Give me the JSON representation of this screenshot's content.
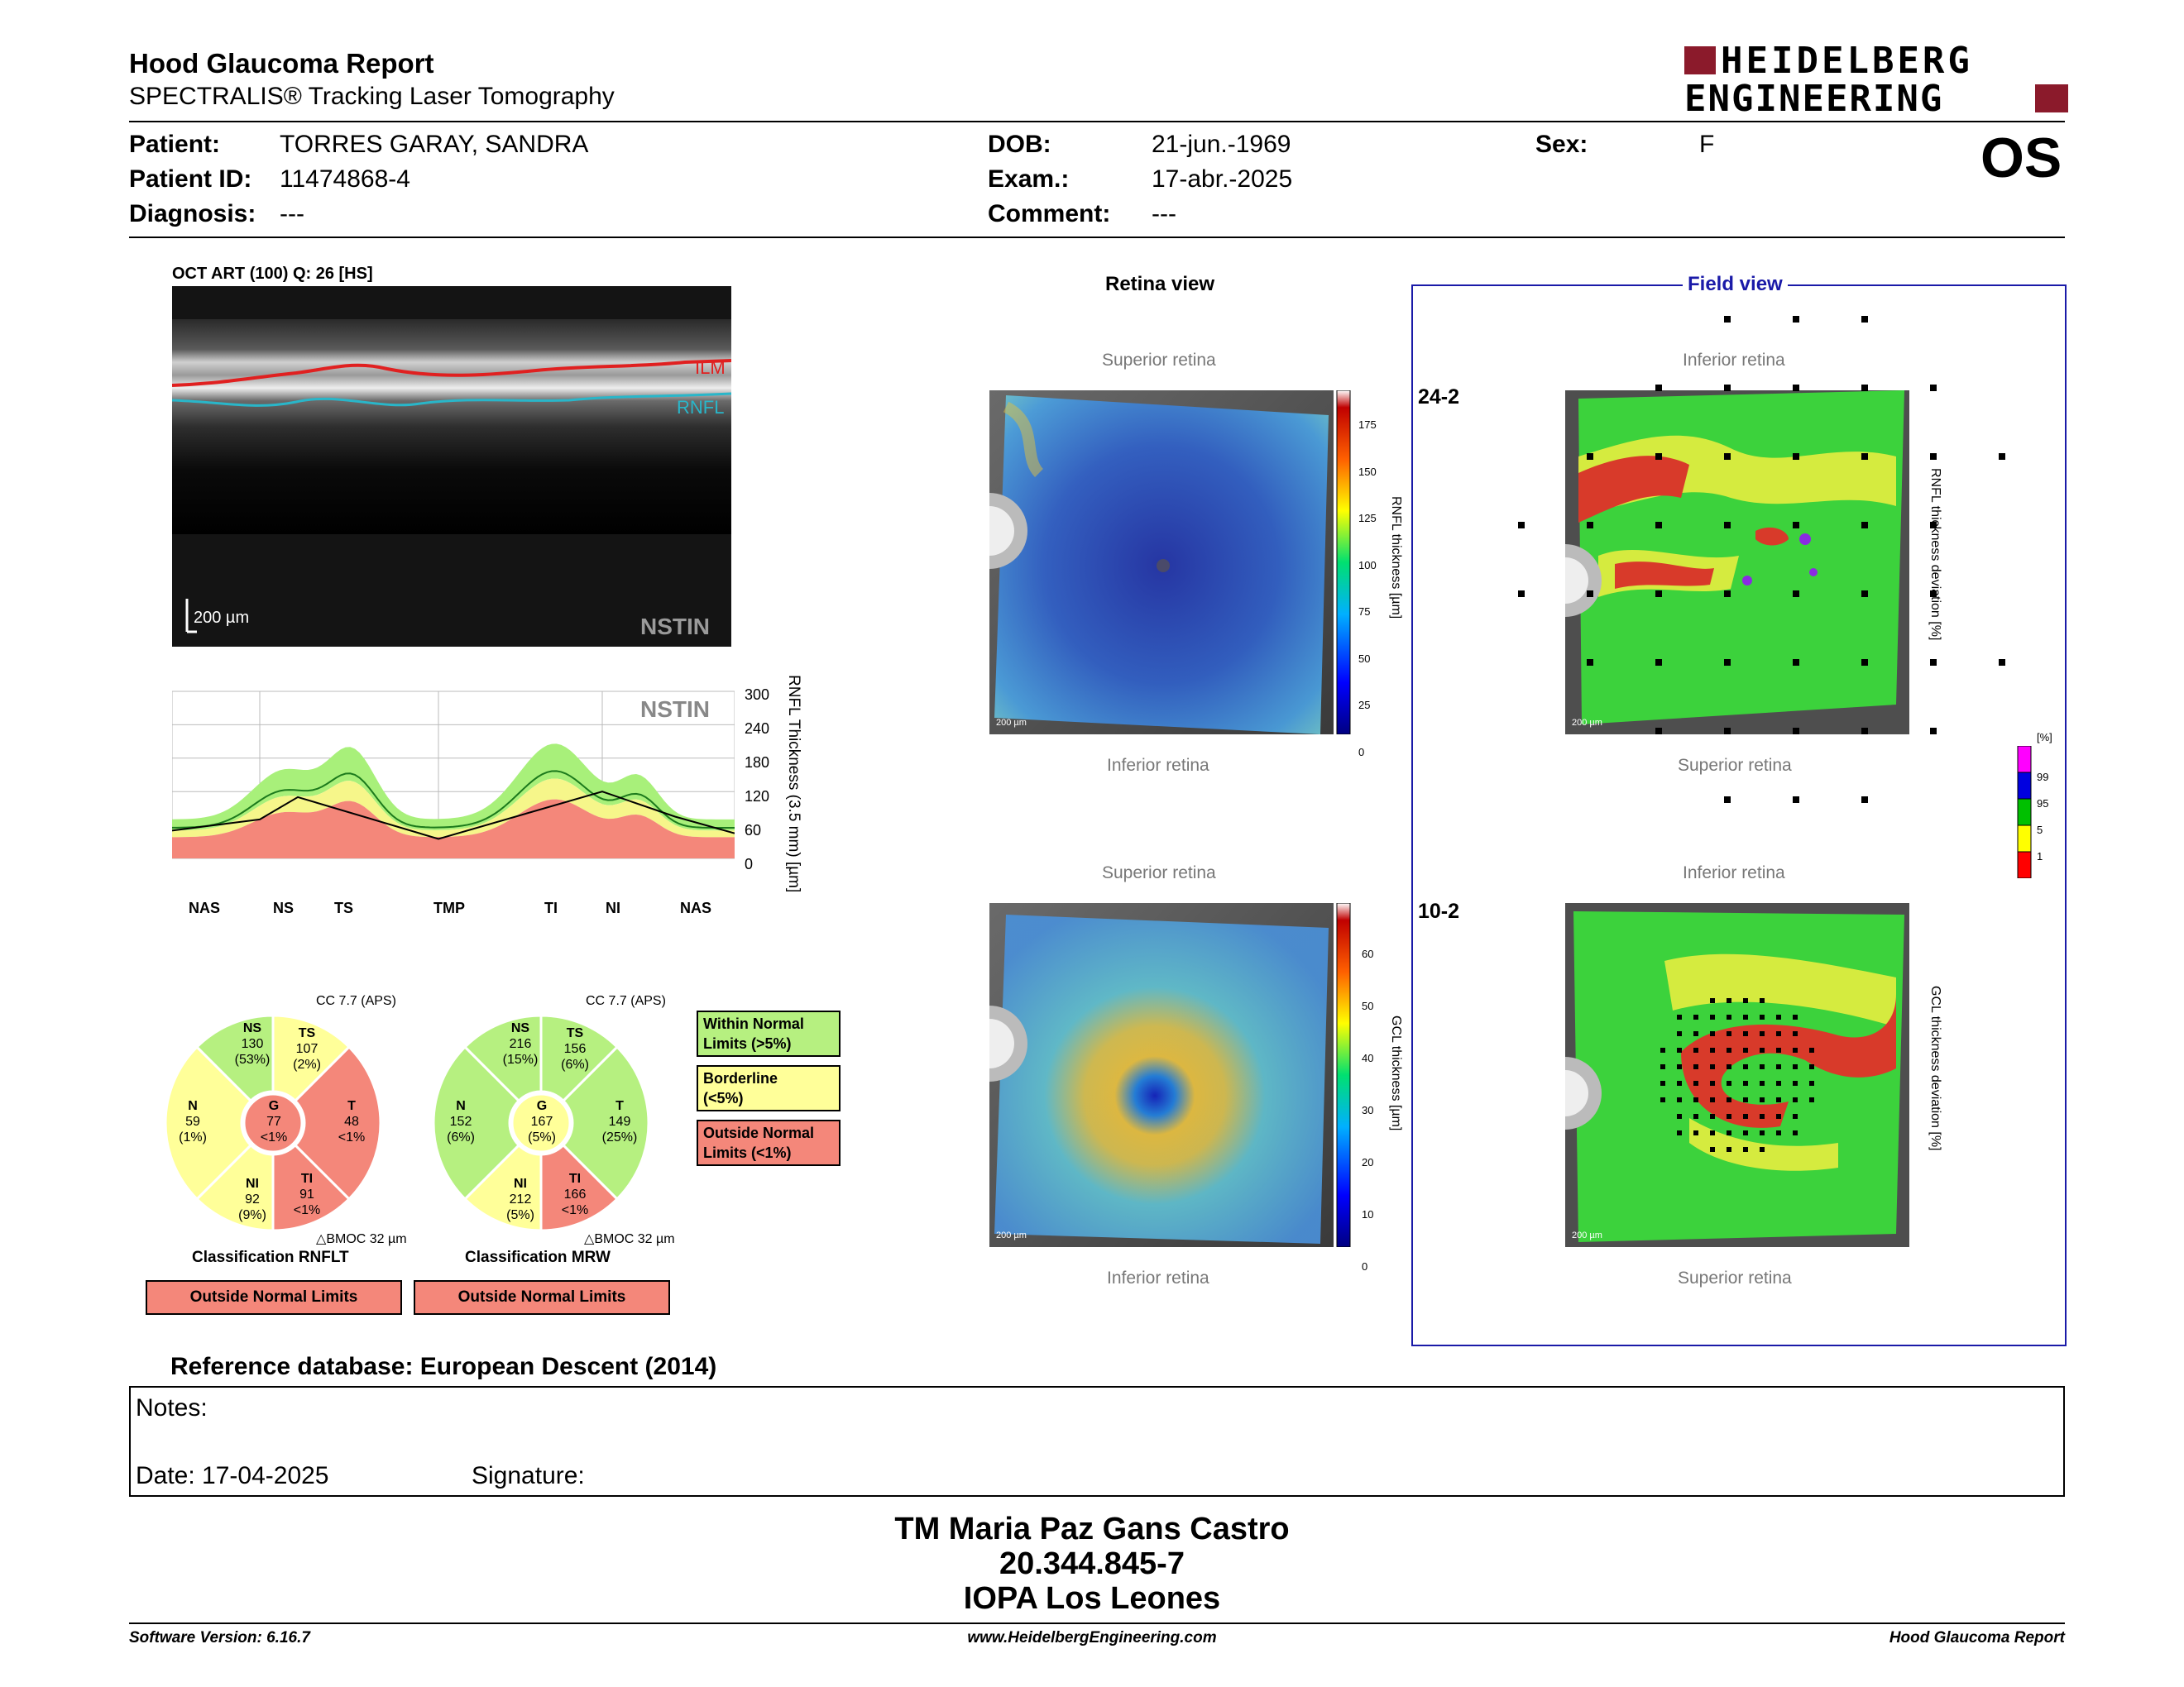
{
  "header": {
    "title": "Hood Glaucoma Report",
    "subtitle": "SPECTRALIS® Tracking Laser Tomography",
    "logo_line1": "HEIDELBERG",
    "logo_line2": "ENGINEERING"
  },
  "patient": {
    "patient_label": "Patient:",
    "patient_value": "TORRES GARAY, SANDRA",
    "id_label": "Patient ID:",
    "id_value": "11474868-4",
    "diag_label": "Diagnosis:",
    "diag_value": "---",
    "dob_label": "DOB:",
    "dob_value": "21-jun.-1969",
    "exam_label": "Exam.:",
    "exam_value": "17-abr.-2025",
    "comment_label": "Comment:",
    "comment_value": "---",
    "sex_label": "Sex:",
    "sex_value": "F",
    "eye": "OS"
  },
  "oct": {
    "title": "OCT ART (100) Q: 26 [HS]",
    "ilm": "ILM",
    "rnfl": "RNFL",
    "scale": "200 µm",
    "mode": "NSTIN"
  },
  "profile": {
    "mode": "NSTIN",
    "ylabel": "RNFL Thickness (3.5 mm) [µm]",
    "yticks": [
      "300",
      "240",
      "180",
      "120",
      "60",
      "0"
    ],
    "xlabels": [
      "NAS",
      "NS",
      "TS",
      "TMP",
      "TI",
      "NI",
      "NAS"
    ]
  },
  "chart_data": {
    "type": "line",
    "title": "",
    "ylabel": "RNFL Thickness (3.5 mm) [µm]",
    "ylim": [
      0,
      300
    ],
    "categories": [
      "NAS",
      "NS",
      "TS",
      "TMP",
      "TI",
      "NI",
      "NAS"
    ],
    "series": [
      {
        "values": [
          50,
          70,
          110,
          35,
          120,
          75,
          45
        ]
      },
      {
        "values": [
          80,
          110,
          170,
          60,
          180,
          115,
          70
        ]
      }
    ]
  },
  "rnflt": {
    "cc": "CC 7.7 (APS)",
    "NS": [
      "NS",
      "130",
      "(53%)"
    ],
    "TS": [
      "TS",
      "107",
      "(2%)"
    ],
    "N": [
      "N",
      "59",
      "(1%)"
    ],
    "G": [
      "G",
      "77",
      "<1%"
    ],
    "T": [
      "T",
      "48",
      "<1%"
    ],
    "NI": [
      "NI",
      "92",
      "(9%)"
    ],
    "TI": [
      "TI",
      "91",
      "<1%"
    ],
    "bmo": "BMOC 32 µm",
    "classification": "Classification RNFLT",
    "result": "Outside Normal Limits"
  },
  "mrw": {
    "cc": "CC 7.7 (APS)",
    "NS": [
      "NS",
      "216",
      "(15%)"
    ],
    "TS": [
      "TS",
      "156",
      "(6%)"
    ],
    "N": [
      "N",
      "152",
      "(6%)"
    ],
    "G": [
      "G",
      "167",
      "(5%)"
    ],
    "T": [
      "T",
      "149",
      "(25%)"
    ],
    "NI": [
      "NI",
      "212",
      "(5%)"
    ],
    "TI": [
      "TI",
      "166",
      "<1%"
    ],
    "bmo": "BMOC 32 µm",
    "classification": "Classification MRW",
    "result": "Outside Normal Limits"
  },
  "legend": {
    "within": "Within Normal Limits (>5%)",
    "within1": "Within Normal",
    "within2": "Limits (>5%)",
    "border1": "Borderline",
    "border2": "(<5%)",
    "outside1": "Outside Normal",
    "outside2": "Limits (<1%)"
  },
  "colors": {
    "green": "#b6f080",
    "yellow": "#ffff99",
    "red": "#f4877a"
  },
  "retina": {
    "title": "Retina view",
    "sup1": "Superior retina",
    "inf1": "Inferior retina",
    "sup2": "Superior retina",
    "inf2": "Inferior retina",
    "rnfl_label": "RNFL thickness [µm]",
    "rnfl_ticks": [
      "175",
      "150",
      "125",
      "100",
      "75",
      "50",
      "25",
      "0"
    ],
    "gcl_label": "GCL thickness [µm]",
    "gcl_ticks": [
      "60",
      "50",
      "40",
      "30",
      "20",
      "10",
      "0"
    ],
    "scale": "200 µm"
  },
  "field": {
    "title": "Field view",
    "inf1": "Inferior retina",
    "sup1": "Superior retina",
    "inf2": "Inferior retina",
    "sup2": "Superior retina",
    "label242": "24-2",
    "label102": "10-2",
    "rnfl_dev": "RNFL thickness deviation [%]",
    "gcl_dev": "GCL thickness deviation [%]",
    "pct": "[%]",
    "pct_ticks": [
      "99",
      "95",
      "5",
      "1"
    ],
    "scale": "200 µm"
  },
  "refdb": "Reference database: European Descent (2014)",
  "notes": {
    "label": "Notes:",
    "date": "Date: 17-04-2025",
    "signature": "Signature:"
  },
  "footer": {
    "name": "TM Maria Paz Gans Castro",
    "rut": "20.344.845-7",
    "org": "IOPA Los Leones",
    "software": "Software Version: 6.16.7",
    "url": "www.HeidelbergEngineering.com",
    "report": "Hood Glaucoma Report"
  }
}
